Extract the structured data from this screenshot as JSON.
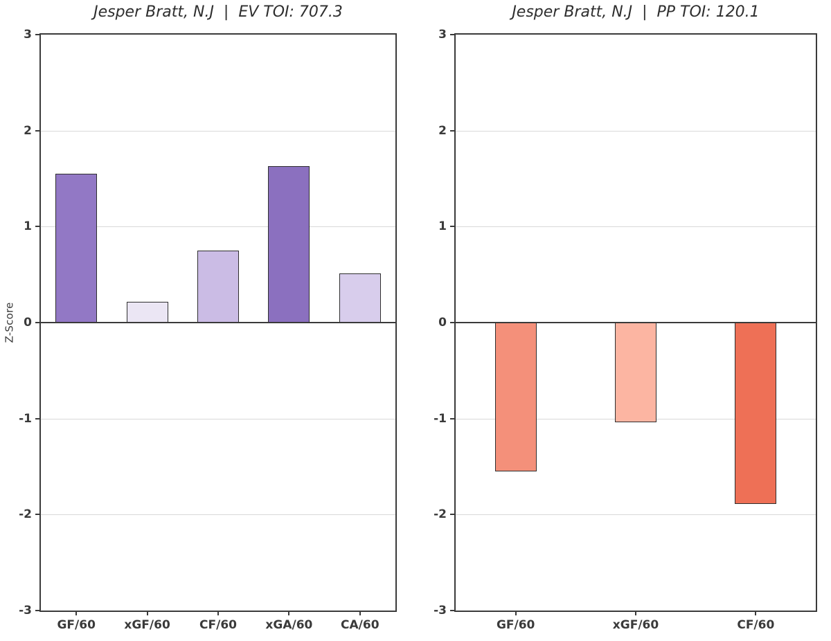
{
  "figure": {
    "ylabel": "Z-Score",
    "background_color": "#ffffff",
    "grid_color": "#d9d9d9",
    "spine_color": "#3a3a3a",
    "bar_edge_color": "#2d2d2d",
    "text_color": "#2e2e2e"
  },
  "chart_data": [
    {
      "type": "bar",
      "title": "Jesper Bratt, N.J  |  EV TOI: 707.3",
      "categories": [
        "GF/60",
        "xGF/60",
        "CF/60",
        "xGA/60",
        "CA/60"
      ],
      "values": [
        1.55,
        0.22,
        0.75,
        1.63,
        0.51
      ],
      "bar_colors": [
        "#9278c5",
        "#ebe6f4",
        "#cbbce5",
        "#8b70bf",
        "#d8cdec"
      ],
      "ylabel": "Z-Score",
      "ylim": [
        -3,
        3
      ],
      "yticks": [
        3,
        2,
        1,
        0,
        -1,
        -2,
        -3
      ],
      "grid": true,
      "legend": null
    },
    {
      "type": "bar",
      "title": "Jesper Bratt, N.J  |  PP TOI: 120.1",
      "categories": [
        "GF/60",
        "xGF/60",
        "CF/60"
      ],
      "values": [
        -1.55,
        -1.04,
        -1.89
      ],
      "bar_colors": [
        "#f4907a",
        "#fcb5a2",
        "#ee7056"
      ],
      "ylabel": "Z-Score",
      "ylim": [
        -3,
        3
      ],
      "yticks": [
        3,
        2,
        1,
        0,
        -1,
        -2,
        -3
      ],
      "grid": true,
      "legend": null
    }
  ]
}
